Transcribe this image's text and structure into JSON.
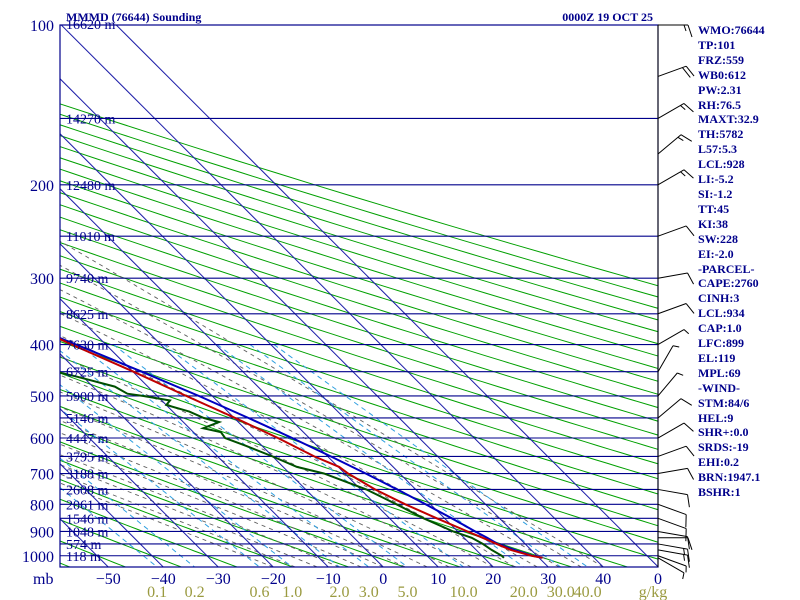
{
  "header": {
    "station_title": "MMMD (76644) Sounding",
    "timestamp": "0000Z 19 OCT 25"
  },
  "colors": {
    "frame": "#00008b",
    "isobar": "#00008b",
    "isotherm": "#1e1eaa",
    "dry_adiabat": "#00a000",
    "moist_adiabat": "#606060",
    "mixing_ratio": "#30a0e0",
    "temperature": "#c00000",
    "dewpoint": "#005000",
    "parcel": "#0000c0",
    "pressure_labels": "#00008b",
    "bottom_labels": "#9a9a40",
    "wind": "#000000"
  },
  "chart_data": {
    "type": "skew-t",
    "title": "MMMD (76644) Sounding",
    "pressure_levels": [
      100,
      200,
      300,
      400,
      500,
      600,
      700,
      800,
      900,
      1000
    ],
    "temperature_ticks": [
      -50,
      -40,
      -30,
      -20,
      -10,
      0,
      10,
      20,
      30,
      40,
      0
    ],
    "temperature_tick_label_prefix": "mb",
    "mixing_ratio_labels": [
      "0.1",
      "0.2",
      "0.6",
      "1.0",
      "2.0",
      "3.0",
      "5.0",
      "10.0",
      "20.0",
      "30.0",
      "40.0"
    ],
    "mixing_ratio_values": [
      0.1,
      0.2,
      0.6,
      1.0,
      2.0,
      3.0,
      5.0,
      10.0,
      20.0,
      30.0,
      40.0
    ],
    "mixing_ratio_unit": "g/kg",
    "heights": [
      {
        "p": 100,
        "label": "16620 m"
      },
      {
        "p": 150,
        "label": "14270 m"
      },
      {
        "p": 200,
        "label": "12480 m"
      },
      {
        "p": 250,
        "label": "11010 m"
      },
      {
        "p": 300,
        "label": "9740 m"
      },
      {
        "p": 350,
        "label": "8625 m"
      },
      {
        "p": 400,
        "label": "7630 m"
      },
      {
        "p": 450,
        "label": "6725 m"
      },
      {
        "p": 500,
        "label": "5900 m"
      },
      {
        "p": 550,
        "label": "5146 m"
      },
      {
        "p": 600,
        "label": "4447 m"
      },
      {
        "p": 650,
        "label": "3795 m"
      },
      {
        "p": 700,
        "label": "3188 m"
      },
      {
        "p": 750,
        "label": "2608 m"
      },
      {
        "p": 800,
        "label": "2061 m"
      },
      {
        "p": 850,
        "label": "1546 m"
      },
      {
        "p": 900,
        "label": "1048 m"
      },
      {
        "p": 950,
        "label": "574 m"
      },
      {
        "p": 1000,
        "label": "118 m"
      }
    ],
    "temperature_profile": [
      [
        1009,
        30.6
      ],
      [
        1000,
        29.0
      ],
      [
        975,
        26.3
      ],
      [
        950,
        24.8
      ],
      [
        925,
        23.4
      ],
      [
        900,
        21.8
      ],
      [
        850,
        18.6
      ],
      [
        800,
        15.4
      ],
      [
        750,
        12.6
      ],
      [
        700,
        10.6
      ],
      [
        680,
        10.2
      ],
      [
        650,
        7.6
      ],
      [
        600,
        4.3
      ],
      [
        550,
        0.2
      ],
      [
        500,
        -4.7
      ],
      [
        450,
        -9.9
      ],
      [
        400,
        -16.2
      ],
      [
        350,
        -22.7
      ],
      [
        300,
        -31.0
      ],
      [
        250,
        -40.5
      ],
      [
        200,
        -52.1
      ],
      [
        175,
        -58.5
      ],
      [
        150,
        -66.0
      ],
      [
        125,
        -71.0
      ],
      [
        100,
        -78.5
      ]
    ],
    "dewpoint_profile": [
      [
        1009,
        23.6
      ],
      [
        1000,
        23.6
      ],
      [
        975,
        22.8
      ],
      [
        950,
        22.3
      ],
      [
        925,
        21.4
      ],
      [
        900,
        19.2
      ],
      [
        850,
        16.2
      ],
      [
        800,
        13.8
      ],
      [
        750,
        11.0
      ],
      [
        700,
        6.2
      ],
      [
        680,
        2.5
      ],
      [
        650,
        0.0
      ],
      [
        620,
        -3.0
      ],
      [
        600,
        -5.3
      ],
      [
        585,
        -5.0
      ],
      [
        575,
        -7.5
      ],
      [
        560,
        -3.5
      ],
      [
        550,
        -5.5
      ],
      [
        535,
        -7.0
      ],
      [
        520,
        -10.0
      ],
      [
        510,
        -8.5
      ],
      [
        500,
        -12.5
      ],
      [
        495,
        -15.0
      ],
      [
        480,
        -16.0
      ],
      [
        460,
        -21.0
      ],
      [
        440,
        -27.0
      ],
      [
        420,
        -30.0
      ],
      [
        405,
        -33.0
      ],
      [
        395,
        -22.0
      ],
      [
        385,
        -28.0
      ],
      [
        370,
        -34.0
      ],
      [
        350,
        -38.0
      ],
      [
        345,
        -47.0
      ],
      [
        335,
        -37.0
      ],
      [
        320,
        -46.0
      ],
      [
        305,
        -53.0
      ],
      [
        300,
        -50.0
      ],
      [
        295,
        -41.0
      ],
      [
        285,
        -57.0
      ],
      [
        250,
        -60.0
      ],
      [
        225,
        -62.0
      ],
      [
        210,
        -61.5
      ],
      [
        200,
        -58.5
      ],
      [
        190,
        -66.0
      ],
      [
        165,
        -69.0
      ],
      [
        150,
        -77.0
      ],
      [
        125,
        -82.0
      ],
      [
        100,
        -91.0
      ]
    ],
    "parcel_profile": [
      [
        1009,
        30.6
      ],
      [
        1000,
        29.2
      ],
      [
        975,
        27.0
      ],
      [
        950,
        25.0
      ],
      [
        925,
        24.2
      ],
      [
        900,
        23.2
      ],
      [
        850,
        21.3
      ],
      [
        800,
        19.1
      ],
      [
        750,
        16.6
      ],
      [
        700,
        13.8
      ],
      [
        650,
        10.6
      ],
      [
        600,
        6.9
      ],
      [
        550,
        2.6
      ],
      [
        500,
        -2.4
      ],
      [
        450,
        -8.4
      ],
      [
        400,
        -15.4
      ],
      [
        350,
        -23.8
      ],
      [
        300,
        -34.0
      ],
      [
        250,
        -46.5
      ],
      [
        200,
        -60.5
      ],
      [
        150,
        -71.0
      ],
      [
        125,
        -76.0
      ],
      [
        110,
        -81.0
      ]
    ],
    "winds": [
      {
        "p": 1009,
        "dir": 120,
        "spd": 5
      },
      {
        "p": 1000,
        "dir": 110,
        "spd": 5
      },
      {
        "p": 975,
        "dir": 100,
        "spd": 15
      },
      {
        "p": 950,
        "dir": 100,
        "spd": 15
      },
      {
        "p": 925,
        "dir": 90,
        "spd": 10
      },
      {
        "p": 900,
        "dir": 100,
        "spd": 10
      },
      {
        "p": 850,
        "dir": 110,
        "spd": 10
      },
      {
        "p": 800,
        "dir": 110,
        "spd": 10
      },
      {
        "p": 750,
        "dir": 100,
        "spd": 10
      },
      {
        "p": 700,
        "dir": 80,
        "spd": 10
      },
      {
        "p": 650,
        "dir": 70,
        "spd": 10
      },
      {
        "p": 600,
        "dir": 60,
        "spd": 10
      },
      {
        "p": 550,
        "dir": 50,
        "spd": 10
      },
      {
        "p": 500,
        "dir": 40,
        "spd": 5
      },
      {
        "p": 450,
        "dir": 30,
        "spd": 5
      },
      {
        "p": 400,
        "dir": 60,
        "spd": 5
      },
      {
        "p": 350,
        "dir": 70,
        "spd": 10
      },
      {
        "p": 300,
        "dir": 80,
        "spd": 10
      },
      {
        "p": 250,
        "dir": 70,
        "spd": 10
      },
      {
        "p": 200,
        "dir": 60,
        "spd": 15
      },
      {
        "p": 175,
        "dir": 50,
        "spd": 15
      },
      {
        "p": 150,
        "dir": 60,
        "spd": 15
      },
      {
        "p": 125,
        "dir": 70,
        "spd": 20
      },
      {
        "p": 100,
        "dir": 90,
        "spd": 15
      }
    ],
    "grid": true
  },
  "stats": [
    "WMO:76644",
    "TP:101",
    "FRZ:559",
    "WB0:612",
    "PW:2.31",
    "RH:76.5",
    "MAXT:32.9",
    "TH:5782",
    "L57:5.3",
    "LCL:928",
    "LI:-5.2",
    "SI:-1.2",
    "TT:45",
    "KI:38",
    "SW:228",
    "EI:-2.0",
    "-PARCEL-",
    "CAPE:2760",
    "CINH:3",
    "LCL:934",
    "CAP:1.0",
    "LFC:899",
    "EL:119",
    "MPL:69",
    "-WIND-",
    "STM:84/6",
    "HEL:9",
    "SHR+:0.0",
    "SRDS:-19",
    "EHI:0.2",
    "BRN:1947.1",
    "BSHR:1"
  ]
}
